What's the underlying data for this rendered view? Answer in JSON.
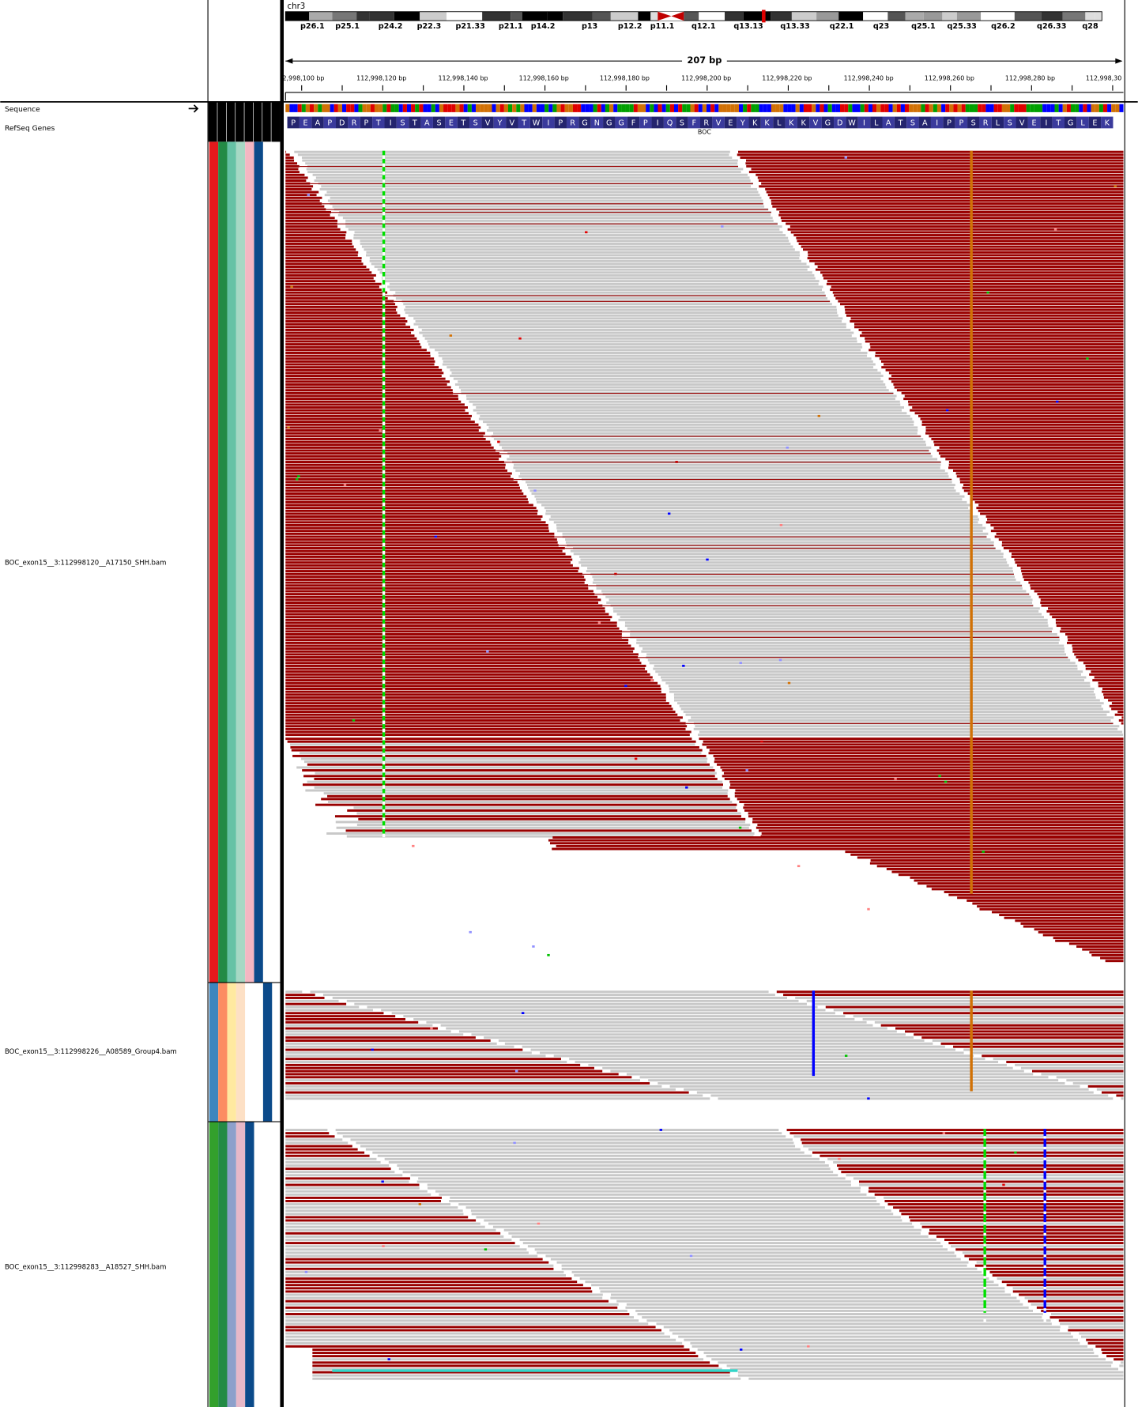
{
  "header": {
    "chromosome": "chr3",
    "cytobands": [
      "p26.1",
      "p25.1",
      "p24.2",
      "p22.3",
      "p21.33",
      "p21.1",
      "p14.2",
      "p13",
      "p12.2",
      "p11.1",
      "q12.1",
      "q13.13",
      "q13.33",
      "q22.1",
      "q23",
      "q25.1",
      "q25.33",
      "q26.2",
      "q26.33",
      "q28"
    ],
    "span": "207 bp",
    "positions": [
      "2,998,100 bp",
      "112,998,120 bp",
      "112,998,140 bp",
      "112,998,160 bp",
      "112,998,180 bp",
      "112,998,200 bp",
      "112,998,220 bp",
      "112,998,240 bp",
      "112,998,260 bp",
      "112,998,280 bp",
      "112,998,30"
    ]
  },
  "tracks": {
    "sequence": "Sequence",
    "refseq": "RefSeq Genes",
    "gene": "BOC",
    "amino_acids": [
      "P",
      "E",
      "A",
      "P",
      "D",
      "R",
      "P",
      "T",
      "I",
      "S",
      "T",
      "A",
      "S",
      "E",
      "T",
      "S",
      "V",
      "Y",
      "V",
      "T",
      "W",
      "I",
      "P",
      "R",
      "G",
      "N",
      "G",
      "G",
      "F",
      "P",
      "I",
      "Q",
      "S",
      "F",
      "R",
      "V",
      "E",
      "Y",
      "K",
      "K",
      "L",
      "K",
      "K",
      "V",
      "G",
      "D",
      "W",
      "I",
      "L",
      "A",
      "T",
      "S",
      "A",
      "I",
      "P",
      "P",
      "S",
      "R",
      "L",
      "S",
      "V",
      "E",
      "I",
      "T",
      "G",
      "L",
      "E",
      "K"
    ],
    "alignments": [
      "BOC_exon15__3:112998120__A17150_SHH.bam",
      "BOC_exon15__3:112998226__A08589_Group4.bam",
      "BOC_exon15__3:112998283__A18527_SHH.bam"
    ]
  }
}
